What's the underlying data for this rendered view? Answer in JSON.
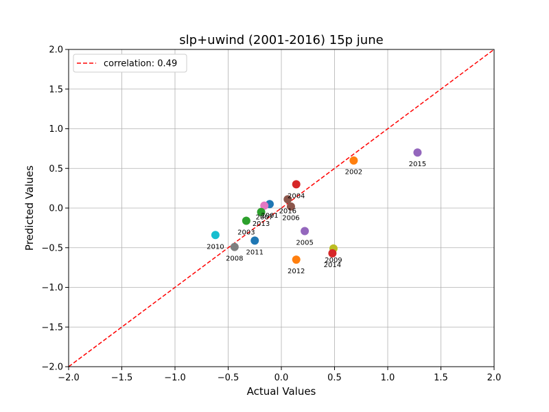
{
  "chart_data": {
    "type": "scatter",
    "title": "slp+uwind (2001-2016) 15p june",
    "xlabel": "Actual Values",
    "ylabel": "Predicted Values",
    "xlim": [
      -2.0,
      2.0
    ],
    "ylim": [
      -2.0,
      2.0
    ],
    "xticks": [
      "−2.0",
      "−1.5",
      "−1.0",
      "−0.5",
      "0.0",
      "0.5",
      "1.0",
      "1.5",
      "2.0"
    ],
    "yticks": [
      "−2.0",
      "−1.5",
      "−1.0",
      "−0.5",
      "0.0",
      "0.5",
      "1.0",
      "1.5",
      "2.0"
    ],
    "grid": true,
    "legend": {
      "placement": "upper-left",
      "entries": [
        "correlation: 0.49"
      ]
    },
    "reference_line": {
      "style": "dashed",
      "color": "#ff0000",
      "from": [
        -2.0,
        -2.0
      ],
      "to": [
        2.0,
        2.0
      ]
    },
    "points": [
      {
        "label": "2001",
        "x": -0.11,
        "y": 0.05,
        "color": "#1f77b4"
      },
      {
        "label": "2002",
        "x": 0.68,
        "y": 0.6,
        "color": "#ff7f0e"
      },
      {
        "label": "2003",
        "x": -0.33,
        "y": -0.16,
        "color": "#2ca02c"
      },
      {
        "label": "2004",
        "x": 0.14,
        "y": 0.3,
        "color": "#d62728"
      },
      {
        "label": "2005",
        "x": 0.22,
        "y": -0.29,
        "color": "#9467bd"
      },
      {
        "label": "2006",
        "x": 0.09,
        "y": 0.02,
        "color": "#8c564b"
      },
      {
        "label": "2007",
        "x": -0.16,
        "y": 0.03,
        "color": "#e377c2"
      },
      {
        "label": "2008",
        "x": -0.44,
        "y": -0.49,
        "color": "#7f7f7f"
      },
      {
        "label": "2009",
        "x": 0.49,
        "y": -0.51,
        "color": "#bcbd22"
      },
      {
        "label": "2010",
        "x": -0.62,
        "y": -0.34,
        "color": "#17becf"
      },
      {
        "label": "2011",
        "x": -0.25,
        "y": -0.41,
        "color": "#1f77b4"
      },
      {
        "label": "2012",
        "x": 0.14,
        "y": -0.65,
        "color": "#ff7f0e"
      },
      {
        "label": "2013",
        "x": -0.19,
        "y": -0.05,
        "color": "#2ca02c"
      },
      {
        "label": "2014",
        "x": 0.48,
        "y": -0.57,
        "color": "#d62728"
      },
      {
        "label": "2015",
        "x": 1.28,
        "y": 0.7,
        "color": "#9467bd"
      },
      {
        "label": "2016",
        "x": 0.06,
        "y": 0.11,
        "color": "#8c564b"
      }
    ]
  }
}
